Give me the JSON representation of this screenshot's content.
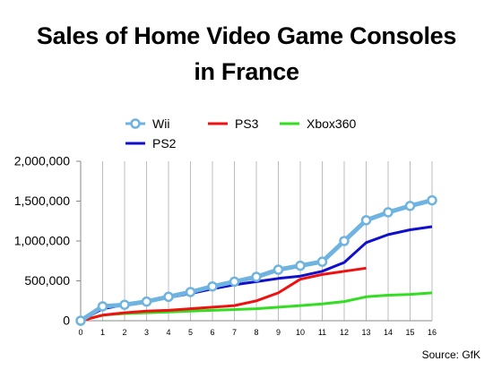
{
  "title_lines": [
    "Sales of Home Video Game Consoles",
    "in France"
  ],
  "source": "Source: GfK",
  "chart_data": {
    "type": "line",
    "title": "Sales of Home Video Game Consoles in France",
    "xlabel": "",
    "ylabel": "",
    "xlim": [
      0,
      16
    ],
    "ylim": [
      0,
      2000000
    ],
    "x_ticks": [
      0,
      1,
      2,
      3,
      4,
      5,
      6,
      7,
      8,
      9,
      10,
      11,
      12,
      13,
      14,
      15,
      16
    ],
    "y_ticks": [
      0,
      500000,
      1000000,
      1500000,
      2000000
    ],
    "y_tick_labels": [
      "0",
      "500,000",
      "1,000,000",
      "1,500,000",
      "2,000,000"
    ],
    "grid": "vertical",
    "legend_position": "top",
    "series": [
      {
        "name": "Wii",
        "color": "#6fb3e0",
        "marker": "circle",
        "x": [
          0,
          1,
          2,
          3,
          4,
          5,
          6,
          7,
          8,
          9,
          10,
          11,
          12,
          13,
          14,
          15,
          16
        ],
        "values": [
          0,
          180000,
          200000,
          240000,
          300000,
          360000,
          430000,
          490000,
          550000,
          640000,
          690000,
          740000,
          1000000,
          1260000,
          1360000,
          1440000,
          1510000
        ]
      },
      {
        "name": "PS2",
        "color": "#1010cc",
        "marker": "none",
        "x": [
          0,
          1,
          2,
          3,
          4,
          5,
          6,
          7,
          8,
          9,
          10,
          11,
          12,
          13,
          14,
          15,
          16
        ],
        "values": [
          0,
          150000,
          200000,
          240000,
          290000,
          340000,
          400000,
          450000,
          490000,
          530000,
          560000,
          620000,
          730000,
          980000,
          1080000,
          1140000,
          1180000
        ]
      },
      {
        "name": "PS3",
        "color": "#ee1111",
        "marker": "none",
        "x": [
          0,
          1,
          2,
          3,
          4,
          5,
          6,
          7,
          8,
          9,
          10,
          11,
          12,
          13
        ],
        "values": [
          0,
          70000,
          100000,
          120000,
          130000,
          150000,
          170000,
          190000,
          250000,
          350000,
          520000,
          580000,
          620000,
          660000
        ]
      },
      {
        "name": "Xbox360",
        "color": "#33dd22",
        "marker": "none",
        "x": [
          0,
          1,
          2,
          3,
          4,
          5,
          6,
          7,
          8,
          9,
          10,
          11,
          12,
          13,
          14,
          15,
          16
        ],
        "values": [
          0,
          70000,
          90000,
          100000,
          110000,
          120000,
          130000,
          140000,
          150000,
          170000,
          190000,
          210000,
          240000,
          300000,
          320000,
          330000,
          350000
        ]
      }
    ]
  }
}
